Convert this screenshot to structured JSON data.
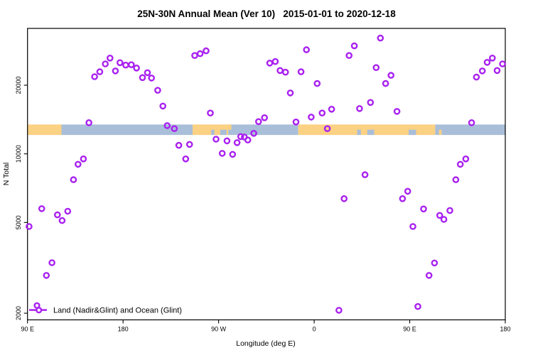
{
  "title": "25N-30N Annual Mean (Ver 10)   2015-01-01 to 2020-12-18",
  "chart_data": {
    "type": "scatter",
    "title": "25N-30N Annual Mean (Ver 10)   2015-01-01 to 2020-12-18",
    "xlabel": "Longitude (deg E)",
    "ylabel": "N Total",
    "y_scale": "log",
    "xlim": [
      90,
      540
    ],
    "ylim": [
      1870,
      35500
    ],
    "grid": "off",
    "x_ticks": [
      {
        "value": 90,
        "label": "90 E"
      },
      {
        "value": 180,
        "label": "180"
      },
      {
        "value": 270,
        "label": "90 W"
      },
      {
        "value": 360,
        "label": "0"
      },
      {
        "value": 450,
        "label": "90 E"
      },
      {
        "value": 540,
        "label": "180"
      }
    ],
    "y_ticks": [
      {
        "value": 2000,
        "label": "2000"
      },
      {
        "value": 5000,
        "label": "5000"
      },
      {
        "value": 10000,
        "label": "10000"
      },
      {
        "value": 20000,
        "label": "20000"
      }
    ],
    "legend": {
      "position": "bottom-left",
      "label": "Land (Nadir&Glint) and Ocean (Glint)",
      "symbol": "points-on-line"
    },
    "marker": {
      "shape": "open-circle",
      "color": "#A921F0"
    },
    "map_band": {
      "description": "land/ocean strip for 25N-30N latitude band",
      "value_low": 12100,
      "value_high": 13450,
      "land_color": "#FBD183",
      "ocean_color": "#A9BED9",
      "segments": [
        {
          "from": 90,
          "to": 122,
          "type": "land",
          "part": "full"
        },
        {
          "from": 122,
          "to": 245.5,
          "type": "ocean",
          "part": "full"
        },
        {
          "from": 245.5,
          "to": 279,
          "type": "land",
          "part": "full"
        },
        {
          "from": 263,
          "to": 266,
          "type": "ocean",
          "part": "bottom"
        },
        {
          "from": 271.5,
          "to": 277.5,
          "type": "ocean",
          "part": "bottom"
        },
        {
          "from": 279,
          "to": 345,
          "type": "ocean",
          "part": "full"
        },
        {
          "from": 279,
          "to": 282,
          "type": "land",
          "part": "top"
        },
        {
          "from": 345,
          "to": 474,
          "type": "land",
          "part": "full"
        },
        {
          "from": 400.5,
          "to": 404,
          "type": "ocean",
          "part": "bottom"
        },
        {
          "from": 410,
          "to": 416.5,
          "type": "ocean",
          "part": "bottom"
        },
        {
          "from": 449,
          "to": 456,
          "type": "ocean",
          "part": "bottom"
        },
        {
          "from": 474,
          "to": 540,
          "type": "ocean",
          "part": "full"
        },
        {
          "from": 477.5,
          "to": 480,
          "type": "land",
          "part": "bottom"
        }
      ]
    },
    "points": [
      [
        91.5,
        4800
      ],
      [
        103.4,
        5750
      ],
      [
        107.8,
        2930
      ],
      [
        113.0,
        3330
      ],
      [
        118.2,
        5400
      ],
      [
        122.6,
        5100
      ],
      [
        127.9,
        5600
      ],
      [
        133.3,
        7700
      ],
      [
        137.6,
        9000
      ],
      [
        142.7,
        9500
      ],
      [
        147.8,
        13700
      ],
      [
        153.2,
        21800
      ],
      [
        158.1,
        22900
      ],
      [
        163.3,
        24800
      ],
      [
        167.7,
        26300
      ],
      [
        172.8,
        23100
      ],
      [
        177.1,
        25100
      ],
      [
        182.5,
        24500
      ],
      [
        187.8,
        24600
      ],
      [
        192.7,
        23800
      ],
      [
        198.3,
        21600
      ],
      [
        203.0,
        22700
      ],
      [
        206.8,
        21500
      ],
      [
        212.6,
        19000
      ],
      [
        217.5,
        16200
      ],
      [
        221.6,
        13300
      ],
      [
        228.3,
        12900
      ],
      [
        232.5,
        10900
      ],
      [
        239.0,
        9500
      ],
      [
        242.6,
        11000
      ],
      [
        247.5,
        27000
      ],
      [
        252.6,
        27500
      ],
      [
        258.2,
        28300
      ],
      [
        262.2,
        15100
      ],
      [
        267.6,
        11600
      ],
      [
        273.4,
        10050
      ],
      [
        277.9,
        11400
      ],
      [
        283.2,
        9950
      ],
      [
        287.4,
        11200
      ],
      [
        290.8,
        11900
      ],
      [
        294.2,
        11850
      ],
      [
        297.5,
        11500
      ],
      [
        303.1,
        12300
      ],
      [
        307.6,
        13850
      ],
      [
        313.2,
        14400
      ],
      [
        318.1,
        25000
      ],
      [
        323.4,
        25400
      ],
      [
        327.9,
        23200
      ],
      [
        333.0,
        22800
      ],
      [
        337.5,
        18500
      ],
      [
        342.9,
        13800
      ],
      [
        347.6,
        22900
      ],
      [
        352.7,
        28600
      ],
      [
        357.2,
        14500
      ],
      [
        362.8,
        20350
      ],
      [
        367.5,
        15100
      ],
      [
        372.4,
        12900
      ],
      [
        376.4,
        15700
      ],
      [
        383.3,
        2060
      ],
      [
        388.2,
        6360
      ],
      [
        392.9,
        27000
      ],
      [
        397.8,
        29750
      ],
      [
        402.7,
        15800
      ],
      [
        407.9,
        8100
      ],
      [
        413.0,
        16800
      ],
      [
        418.4,
        23900
      ],
      [
        422.4,
        32200
      ],
      [
        427.3,
        20350
      ],
      [
        432.4,
        22100
      ],
      [
        438.0,
        15350
      ],
      [
        443.2,
        6360
      ],
      [
        448.1,
        6850
      ],
      [
        453.0,
        4800
      ],
      [
        457.7,
        2140
      ],
      [
        463.0,
        5730
      ],
      [
        468.2,
        2930
      ],
      [
        473.3,
        3320
      ],
      [
        478.2,
        5370
      ],
      [
        482.2,
        5160
      ],
      [
        487.8,
        5640
      ],
      [
        493.4,
        7700
      ],
      [
        497.6,
        9000
      ],
      [
        502.8,
        9500
      ],
      [
        508.3,
        13700
      ],
      [
        512.8,
        21700
      ],
      [
        518.4,
        23100
      ],
      [
        522.9,
        25200
      ],
      [
        527.8,
        26300
      ],
      [
        532.3,
        23200
      ],
      [
        537.4,
        24800
      ]
    ]
  }
}
